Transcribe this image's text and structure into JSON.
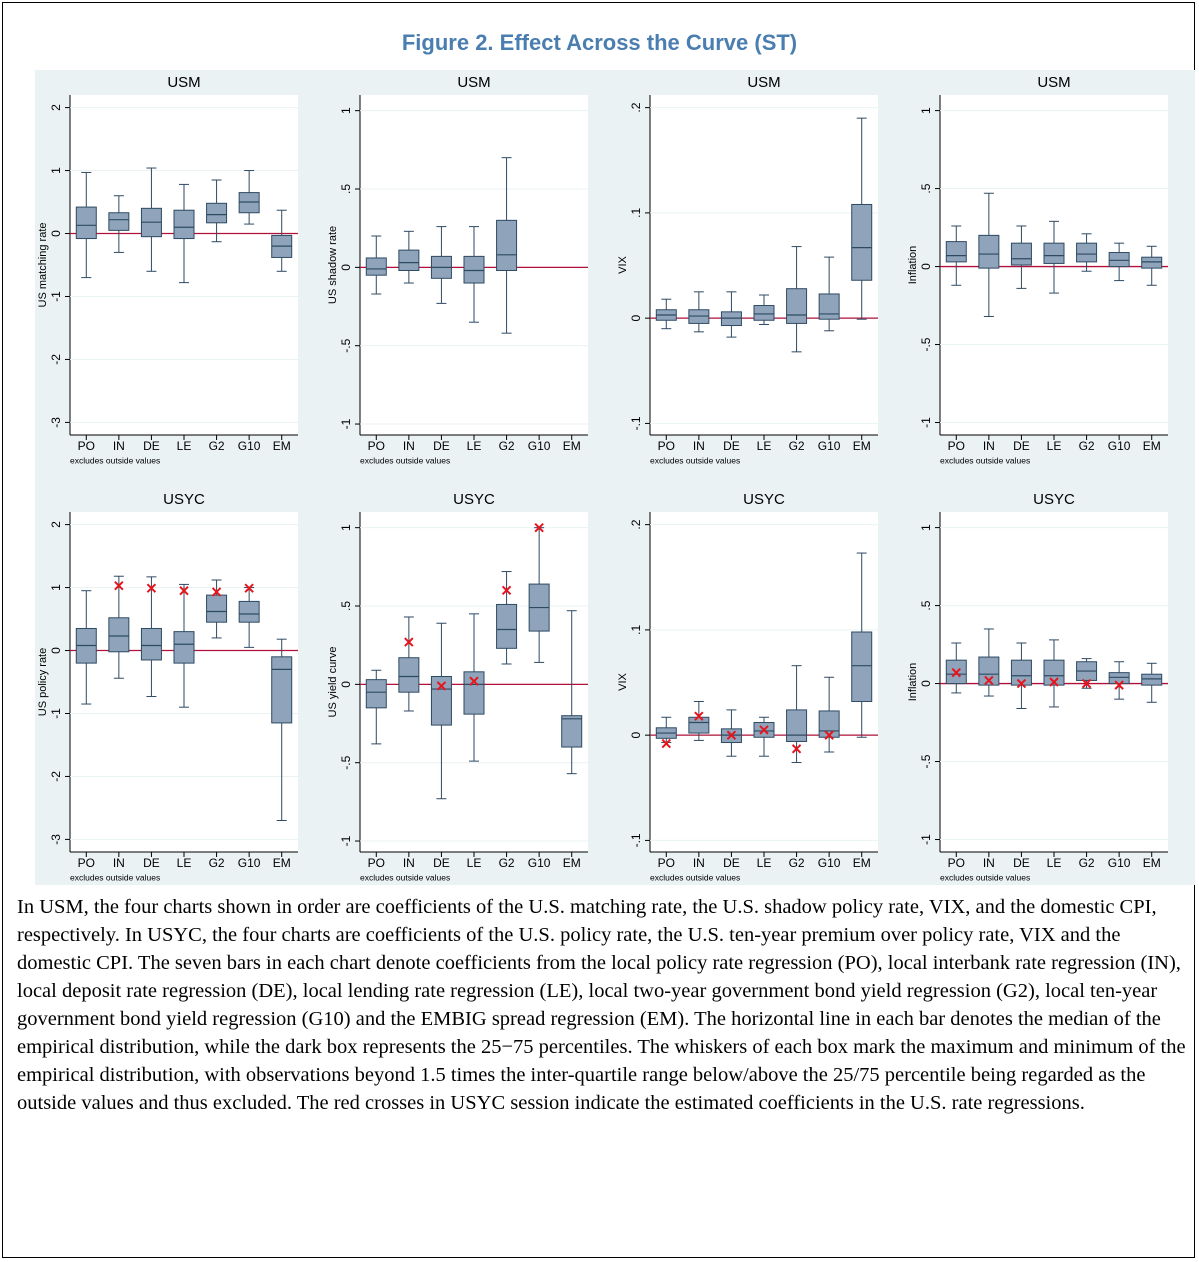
{
  "title": "Figure 2. Effect Across the Curve (ST)",
  "caption": "In USM, the four charts shown in order are coefficients of the U.S. matching rate, the U.S. shadow policy rate, VIX, and the domestic CPI, respectively. In USYC, the four charts are coefficients of the U.S. policy rate, the U.S. ten-year premium over policy rate, VIX and the domestic CPI. The seven bars in each chart denote coefficients from the local policy rate regression (PO), local interbank rate regression (IN), local deposit rate regression (DE), local lending rate regression (LE), local two-year government bond yield regression (G2), local ten-year government bond yield regression (G10) and the EMBIG spread regression (EM). The horizontal line in each bar denotes the median of the empirical distribution, while the dark box represents the 25−75 percentiles. The whiskers of each box mark the maximum and minimum of the empirical distribution, with observations beyond 1.5 times the inter-quartile range below/above the 25/75 percentile being regarded as the outside values and thus excluded. The red crosses in USYC session indicate the estimated coefficients in the U.S. rate regressions.",
  "chart_data": [
    {
      "type": "box",
      "title": "USM",
      "ylabel": "US matching rate",
      "note": "excludes outside values",
      "categories": [
        "PO",
        "IN",
        "DE",
        "LE",
        "G2",
        "G10",
        "EM"
      ],
      "max": [
        0.97,
        0.6,
        1.04,
        0.78,
        0.85,
        1.0,
        0.37
      ],
      "q3": [
        0.42,
        0.33,
        0.4,
        0.37,
        0.48,
        0.65,
        -0.03
      ],
      "median": [
        0.13,
        0.22,
        0.18,
        0.1,
        0.3,
        0.5,
        -0.2
      ],
      "q1": [
        -0.08,
        0.05,
        -0.05,
        -0.08,
        0.17,
        0.33,
        -0.38
      ],
      "min": [
        -0.7,
        -0.3,
        -0.6,
        -0.78,
        -0.13,
        0.15,
        -0.6
      ],
      "ylim": [
        -3.2,
        2.2
      ],
      "yticks": [
        -3,
        -2,
        -1,
        0,
        1,
        2
      ],
      "refline": 0,
      "grid": true,
      "box_color": "#8fa4ba",
      "refline_color": "#b0103a"
    },
    {
      "type": "box",
      "title": "USM",
      "ylabel": "US shadow rate",
      "note": "excludes outside values",
      "categories": [
        "PO",
        "IN",
        "DE",
        "LE",
        "G2",
        "G10",
        "EM"
      ],
      "max": [
        0.2,
        0.23,
        0.26,
        0.26,
        0.7,
        null,
        null
      ],
      "q3": [
        0.06,
        0.11,
        0.07,
        0.07,
        0.3,
        null,
        null
      ],
      "median": [
        -0.01,
        0.03,
        0.0,
        -0.02,
        0.08,
        null,
        null
      ],
      "q1": [
        -0.05,
        -0.02,
        -0.07,
        -0.1,
        -0.02,
        null,
        null
      ],
      "min": [
        -0.17,
        -0.1,
        -0.23,
        -0.35,
        -0.42,
        null,
        null
      ],
      "ylim": [
        -1.07,
        1.1
      ],
      "yticks": [
        -1,
        {
          "value": -0.5,
          "label": "-.5"
        },
        0,
        {
          "value": 0.5,
          "label": ".5"
        },
        1
      ],
      "refline": 0,
      "grid": true,
      "box_color": "#8fa4ba",
      "refline_color": "#b0103a"
    },
    {
      "type": "box",
      "title": "USM",
      "ylabel": "VIX",
      "note": "excludes outside values",
      "categories": [
        "PO",
        "IN",
        "DE",
        "LE",
        "G2",
        "G10",
        "EM"
      ],
      "max": [
        0.018,
        0.025,
        0.025,
        0.022,
        0.068,
        0.058,
        0.19
      ],
      "q3": [
        0.008,
        0.008,
        0.006,
        0.012,
        0.028,
        0.023,
        0.108
      ],
      "median": [
        0.003,
        0.002,
        0.0,
        0.004,
        0.003,
        0.004,
        0.067
      ],
      "q1": [
        -0.002,
        -0.005,
        -0.007,
        -0.002,
        -0.005,
        -0.001,
        0.036
      ],
      "min": [
        -0.01,
        -0.013,
        -0.018,
        -0.006,
        -0.032,
        -0.012,
        -0.001
      ],
      "ylim": [
        -0.111,
        0.212
      ],
      "yticks": [
        {
          "value": -0.1,
          "label": "-.1"
        },
        0,
        {
          "value": 0.1,
          "label": ".1"
        },
        {
          "value": 0.2,
          "label": ".2"
        }
      ],
      "refline": 0,
      "grid": true,
      "box_color": "#8fa4ba",
      "refline_color": "#b0103a"
    },
    {
      "type": "box",
      "title": "USM",
      "ylabel": "Inflation",
      "note": "excludes outside values",
      "categories": [
        "PO",
        "IN",
        "DE",
        "LE",
        "G2",
        "G10",
        "EM"
      ],
      "max": [
        0.26,
        0.47,
        0.26,
        0.29,
        0.21,
        0.15,
        0.13
      ],
      "q3": [
        0.16,
        0.2,
        0.15,
        0.15,
        0.15,
        0.09,
        0.06
      ],
      "median": [
        0.07,
        0.08,
        0.05,
        0.07,
        0.08,
        0.04,
        0.03
      ],
      "q1": [
        0.03,
        -0.01,
        0.01,
        0.02,
        0.03,
        0.0,
        -0.01
      ],
      "min": [
        -0.12,
        -0.32,
        -0.14,
        -0.17,
        -0.03,
        -0.09,
        -0.12
      ],
      "ylim": [
        -1.08,
        1.1
      ],
      "yticks": [
        -1,
        {
          "value": -0.5,
          "label": "-.5"
        },
        0,
        {
          "value": 0.5,
          "label": ".5"
        },
        1
      ],
      "refline": 0,
      "grid": true,
      "box_color": "#8fa4ba",
      "refline_color": "#b0103a"
    },
    {
      "type": "box",
      "title": "USYC",
      "ylabel": "US policy rate",
      "note": "excludes outside values",
      "categories": [
        "PO",
        "IN",
        "DE",
        "LE",
        "G2",
        "G10",
        "EM"
      ],
      "max": [
        0.95,
        1.18,
        1.17,
        1.05,
        1.12,
        1.0,
        0.18
      ],
      "q3": [
        0.35,
        0.52,
        0.35,
        0.3,
        0.88,
        0.78,
        -0.1
      ],
      "median": [
        0.08,
        0.23,
        0.08,
        0.1,
        0.62,
        0.58,
        -0.3
      ],
      "q1": [
        -0.2,
        -0.02,
        -0.15,
        -0.2,
        0.45,
        0.45,
        -1.15
      ],
      "min": [
        -0.85,
        -0.44,
        -0.73,
        -0.9,
        0.2,
        0.05,
        -2.7
      ],
      "estimates": [
        null,
        1.03,
        0.99,
        0.95,
        0.93,
        0.99,
        null
      ],
      "estimate_color": "#e8141c",
      "ylim": [
        -3.2,
        2.2
      ],
      "yticks": [
        -3,
        -2,
        -1,
        0,
        1,
        2
      ],
      "refline": 0,
      "grid": true,
      "box_color": "#8fa4ba",
      "refline_color": "#b0103a"
    },
    {
      "type": "box",
      "title": "USYC",
      "ylabel": "US yield curve",
      "note": "excludes outside values",
      "categories": [
        "PO",
        "IN",
        "DE",
        "LE",
        "G2",
        "G10",
        "EM"
      ],
      "max": [
        0.09,
        0.43,
        0.39,
        0.45,
        0.72,
        1.0,
        0.47
      ],
      "q3": [
        0.03,
        0.17,
        0.05,
        0.08,
        0.51,
        0.64,
        -0.2
      ],
      "median": [
        -0.05,
        0.05,
        -0.03,
        0.0,
        0.35,
        0.49,
        -0.22
      ],
      "q1": [
        -0.15,
        -0.05,
        -0.26,
        -0.19,
        0.23,
        0.34,
        -0.4
      ],
      "min": [
        -0.38,
        -0.17,
        -0.73,
        -0.49,
        0.13,
        0.14,
        -0.57
      ],
      "estimates": [
        null,
        0.27,
        -0.01,
        0.02,
        0.6,
        1.0,
        null
      ],
      "estimate_color": "#e8141c",
      "ylim": [
        -1.07,
        1.1
      ],
      "yticks": [
        -1,
        {
          "value": -0.5,
          "label": "-.5"
        },
        0,
        {
          "value": 0.5,
          "label": ".5"
        },
        1
      ],
      "refline": 0,
      "grid": true,
      "box_color": "#8fa4ba",
      "refline_color": "#b0103a"
    },
    {
      "type": "box",
      "title": "USYC",
      "ylabel": "VIX",
      "note": "excludes outside values",
      "categories": [
        "PO",
        "IN",
        "DE",
        "LE",
        "G2",
        "G10",
        "EM"
      ],
      "max": [
        0.017,
        0.032,
        0.024,
        0.017,
        0.066,
        0.055,
        0.173
      ],
      "q3": [
        0.007,
        0.017,
        0.006,
        0.012,
        0.024,
        0.023,
        0.098
      ],
      "median": [
        0.002,
        0.012,
        0.0,
        0.004,
        0.0,
        0.004,
        0.066
      ],
      "q1": [
        -0.003,
        0.002,
        -0.007,
        -0.002,
        -0.006,
        -0.002,
        0.032
      ],
      "min": [
        -0.007,
        -0.005,
        -0.02,
        -0.02,
        -0.026,
        -0.016,
        -0.002
      ],
      "estimates": [
        -0.008,
        0.018,
        0.0,
        0.005,
        -0.013,
        0.0,
        null
      ],
      "estimate_color": "#e8141c",
      "ylim": [
        -0.111,
        0.212
      ],
      "yticks": [
        {
          "value": -0.1,
          "label": "-.1"
        },
        0,
        {
          "value": 0.1,
          "label": ".1"
        },
        {
          "value": 0.2,
          "label": ".2"
        }
      ],
      "refline": 0,
      "grid": true,
      "box_color": "#8fa4ba",
      "refline_color": "#b0103a"
    },
    {
      "type": "box",
      "title": "USYC",
      "ylabel": "Inflation",
      "note": "excludes outside values",
      "categories": [
        "PO",
        "IN",
        "DE",
        "LE",
        "G2",
        "G10",
        "EM"
      ],
      "max": [
        0.26,
        0.35,
        0.26,
        0.28,
        0.16,
        0.14,
        0.13
      ],
      "q3": [
        0.15,
        0.17,
        0.15,
        0.15,
        0.14,
        0.07,
        0.06
      ],
      "median": [
        0.06,
        0.06,
        0.05,
        0.05,
        0.08,
        0.04,
        0.03
      ],
      "q1": [
        0.0,
        -0.01,
        -0.01,
        -0.01,
        0.02,
        0.0,
        -0.01
      ],
      "min": [
        -0.06,
        -0.08,
        -0.16,
        -0.15,
        -0.03,
        -0.1,
        -0.12
      ],
      "estimates": [
        0.07,
        0.02,
        0.0,
        0.01,
        0.0,
        -0.01,
        null
      ],
      "estimate_color": "#e8141c",
      "ylim": [
        -1.08,
        1.1
      ],
      "yticks": [
        -1,
        {
          "value": -0.5,
          "label": "-.5"
        },
        0,
        {
          "value": 0.5,
          "label": ".5"
        },
        1
      ],
      "refline": 0,
      "grid": true,
      "box_color": "#8fa4ba",
      "refline_color": "#b0103a"
    }
  ]
}
